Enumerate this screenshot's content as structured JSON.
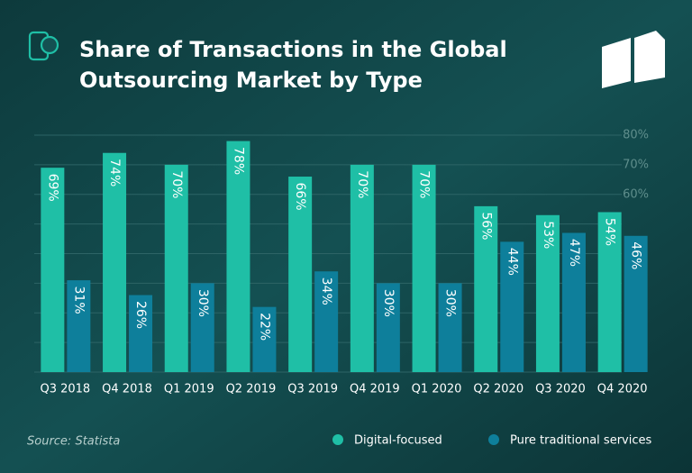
{
  "chart_data": {
    "type": "bar",
    "title": [
      "Share of Transactions in the Global",
      "Outsourcing Market by Type"
    ],
    "categories": [
      "Q3 2018",
      "Q4 2018",
      "Q1 2019",
      "Q2 2019",
      "Q3 2019",
      "Q4 2019",
      "Q1 2020",
      "Q2 2020",
      "Q3 2020",
      "Q4 2020"
    ],
    "series": [
      {
        "name": "Digital-focused",
        "color": "#1fbfa6",
        "values": [
          69,
          74,
          70,
          78,
          66,
          70,
          70,
          56,
          53,
          54
        ],
        "value_labels": [
          "69%",
          "74%",
          "70%",
          "78%",
          "66%",
          "70%",
          "70%",
          "56%",
          "53%",
          "54%"
        ]
      },
      {
        "name": "Pure traditional services",
        "color": "#0e7f9b",
        "values": [
          31,
          26,
          30,
          22,
          34,
          30,
          30,
          44,
          47,
          46
        ],
        "value_labels": [
          "31%",
          "26%",
          "30%",
          "22%",
          "34%",
          "30%",
          "30%",
          "44%",
          "47%",
          "46%"
        ]
      }
    ],
    "ylim": [
      0,
      80
    ],
    "yticks": [
      {
        "value": 0,
        "label": null
      },
      {
        "value": 10,
        "label": null
      },
      {
        "value": 20,
        "label": null
      },
      {
        "value": 30,
        "label": null
      },
      {
        "value": 40,
        "label": null
      },
      {
        "value": 50,
        "label": null
      },
      {
        "value": 60,
        "label": "60%"
      },
      {
        "value": 70,
        "label": "70%"
      },
      {
        "value": 80,
        "label": "80%"
      }
    ],
    "grid": true,
    "legend": "bottom-right",
    "source": "Source: Statista"
  }
}
